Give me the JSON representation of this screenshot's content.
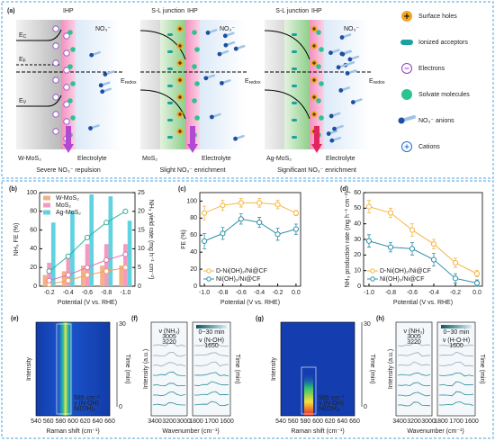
{
  "panel_a": {
    "label": "(a)",
    "columns": [
      {
        "ihp": "IHP",
        "anion": "NO₃⁻",
        "bands": [
          {
            "symbol": "E",
            "sub": "C"
          },
          {
            "symbol": "E",
            "sub": "F"
          },
          {
            "symbol": "E",
            "sub": "V"
          }
        ],
        "redox": {
          "symbol": "E",
          "sub": "redox"
        },
        "material": "W-MoS₂",
        "electrolyte": "Electrolyte",
        "caption": "Severe NO₃⁻ repulsion",
        "caption_color": "#b04ad0"
      },
      {
        "junction": "S-L junction",
        "ihp": "IHP",
        "anion": "NO₃⁻",
        "redox": {
          "symbol": "E",
          "sub": "redox"
        },
        "material": "MoS₂",
        "electrolyte": "Electrolyte",
        "caption": "Slight NO₃⁻ enrichment",
        "caption_color": "#b04ad0"
      },
      {
        "junction": "S-L junction",
        "ihp": "IHP",
        "anion": "NO₃⁻",
        "redox": {
          "symbol": "E",
          "sub": "redox"
        },
        "material": "Ag-MoS₂",
        "electrolyte": "Electrolyte",
        "caption": "Significant NO₃⁻ enrichment",
        "caption_color": "#e0245e"
      }
    ],
    "legend": [
      "Surface holes",
      "Ionized acceptors",
      "Electrons",
      "Solvate molecules",
      "NO₃⁻ anions",
      "Cations"
    ]
  },
  "chart_data": [
    {
      "panel_label": "(b)",
      "type": "bar",
      "categories": [
        "-0.2",
        "-0.4",
        "-0.6",
        "-0.8",
        "-1.0"
      ],
      "xlabel": "Potential (V vs. RHE)",
      "ylabel": "NH₃ FE (%)",
      "y2label": "NH₃ yield rate (mg h⁻¹ cm⁻²)",
      "ylim": [
        0,
        100
      ],
      "yticks": [
        0,
        20,
        40,
        60,
        80,
        100
      ],
      "y2lim": [
        0,
        25
      ],
      "y2ticks": [
        0,
        5,
        10,
        15,
        20,
        25
      ],
      "legend": "upper left",
      "series": [
        {
          "name": "W-MoS₂",
          "color": "#f4b183",
          "values": [
            12,
            16,
            22,
            22,
            22
          ]
        },
        {
          "name": "MoS₂",
          "color": "#f49ac1",
          "values": [
            25,
            30,
            45,
            45,
            45
          ]
        },
        {
          "name": "Ag-MoS₂",
          "color": "#5fd3e0",
          "values": [
            68,
            80,
            98,
            96,
            70
          ]
        },
        {
          "axis": "y2",
          "color": "#f0a060",
          "values": [
            0.5,
            1.5,
            3,
            4,
            5
          ]
        },
        {
          "axis": "y2",
          "color": "#e070b0",
          "values": [
            1.5,
            3,
            5,
            7,
            8.5
          ]
        },
        {
          "axis": "y2",
          "color": "#30b0a0",
          "values": [
            4,
            8,
            13,
            17,
            20
          ]
        }
      ]
    },
    {
      "panel_label": "(c)",
      "type": "line",
      "x": [
        -1.0,
        -0.8,
        -0.6,
        -0.4,
        -0.2,
        0.0
      ],
      "xlabel": "Potential (V vs. RHE)",
      "ylabel": "FE (%)",
      "xlim": [
        -1.05,
        0.05
      ],
      "xticks": [
        {
          "value": -1,
          "label": "-1.0"
        },
        -0.8,
        -0.6,
        -0.4,
        -0.2,
        {
          "value": 0,
          "label": "0.0"
        }
      ],
      "ylim": [
        0,
        110
      ],
      "yticks": [
        0,
        20,
        40,
        60,
        80,
        100
      ],
      "legend": "lower left",
      "series": [
        {
          "name": "D-Ni(OH)₂/Ni@CF",
          "color": "#f5b642",
          "values": [
            86,
            95,
            98,
            98,
            96,
            86
          ],
          "errors": [
            8,
            6,
            5,
            5,
            5,
            3
          ]
        },
        {
          "name": "Ni(OH)₂/Ni@CF",
          "color": "#2f8fa8",
          "values": [
            53,
            62,
            79,
            75,
            61,
            67
          ],
          "errors": [
            9,
            7,
            6,
            6,
            7,
            6
          ]
        }
      ]
    },
    {
      "panel_label": "(d)",
      "type": "line",
      "x": [
        -1.0,
        -0.8,
        -0.6,
        -0.4,
        -0.2,
        0.0
      ],
      "xlabel": "Potential (V vs. RHE)",
      "ylabel": "NH₃ production rate (mg h⁻¹ cm⁻²)",
      "xlim": [
        -1.05,
        0.05
      ],
      "xticks": [
        {
          "value": -1,
          "label": "-1.0"
        },
        -0.8,
        -0.6,
        -0.4,
        -0.2,
        {
          "value": 0,
          "label": "0.0"
        }
      ],
      "ylim": [
        0,
        60
      ],
      "yticks": [
        0,
        10,
        20,
        30,
        40,
        50,
        60
      ],
      "legend": "lower left",
      "series": [
        {
          "name": "D-Ni(OH)₂/Ni@CF",
          "color": "#f5b642",
          "values": [
            51,
            47,
            36,
            27,
            15,
            8
          ],
          "errors": [
            4,
            3,
            4,
            3,
            3,
            2
          ]
        },
        {
          "name": "Ni(OH)₂/Ni@CF",
          "color": "#2f8fa8",
          "values": [
            29,
            25,
            24,
            17,
            5,
            2
          ],
          "errors": [
            4,
            3,
            4,
            4,
            3,
            2
          ]
        }
      ]
    }
  ],
  "maps": [
    {
      "label": "(e)",
      "ylabel": "Intensity",
      "xlabel": "Raman shift (cm⁻¹)",
      "xticks": [
        "540",
        "560",
        "580",
        "600",
        "620",
        "640",
        "660"
      ],
      "time_label": "Time (min)",
      "time_ticks": [
        "0",
        "30"
      ],
      "annotation": [
        "585 cm⁻¹",
        "ν (N-OH)",
        "Ni(OH)₂"
      ]
    },
    {
      "label": "(g)",
      "ylabel": "Intensity",
      "xlabel": "Raman shift (cm⁻¹)",
      "xticks": [
        "540",
        "560",
        "580",
        "600",
        "620",
        "640",
        "660"
      ],
      "time_label": "Time (min)",
      "time_ticks": [
        "0",
        "30"
      ],
      "annotation": [
        "585 cm⁻¹",
        "ν (N-OH)",
        "Ni(OH)₂"
      ]
    }
  ],
  "spectra": [
    {
      "label": "(f)",
      "ylabel": "Intensity (a.u.)",
      "xlabel": "Wavenumber (cm⁻¹)",
      "left_xticks": [
        "3400",
        "3200",
        "3000"
      ],
      "right_xticks": [
        "1800",
        "1700",
        "1600"
      ],
      "left_note": [
        "ν (NH₃)",
        "3005",
        "3220"
      ],
      "right_note": [
        "ν (N-OH)",
        "1650"
      ],
      "colorbar": "0~30 min",
      "time_label": "Time (min)"
    },
    {
      "label": "(h)",
      "ylabel": "Intensity (a.u.)",
      "xlabel": "Wavenumber (cm⁻¹)",
      "left_xticks": [
        "3400",
        "3200",
        "3000"
      ],
      "right_xticks": [
        "1800",
        "1700",
        "1600"
      ],
      "left_note": [
        "ν (NH₃)",
        "3005",
        "3220"
      ],
      "right_note": [
        "ν (H-O-H)",
        "1600"
      ],
      "colorbar": "0~30 min",
      "time_label": "Time (min)"
    }
  ]
}
